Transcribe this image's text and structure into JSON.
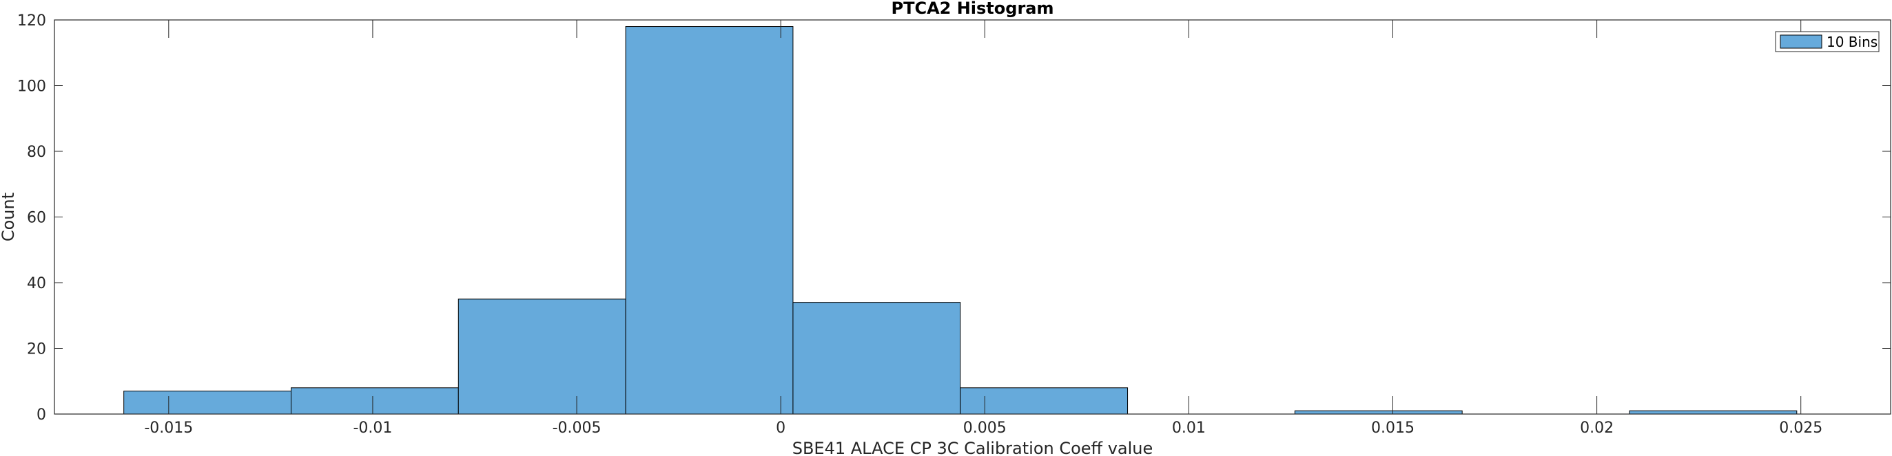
{
  "chart_data": {
    "type": "bar",
    "title": "PTCA2 Histogram",
    "xlabel": "SBE41 ALACE CP 3C Calibration Coeff value",
    "ylabel": "Count",
    "xlim": [
      -0.0178,
      0.0272
    ],
    "ylim": [
      0,
      120
    ],
    "grid": false,
    "legend_position": "top-right",
    "bar_color": "#66AADB",
    "series": [
      {
        "name": "10 Bins",
        "bin_edges": [
          -0.0161,
          -0.012,
          -0.0079,
          -0.0038,
          0.0003,
          0.0044,
          0.0085,
          0.0126,
          0.0167,
          0.0208,
          0.0249
        ],
        "values": [
          7,
          8,
          35,
          118,
          34,
          8,
          0,
          1,
          0,
          1
        ]
      }
    ],
    "x_ticks": [
      -0.015,
      -0.01,
      -0.005,
      0,
      0.005,
      0.01,
      0.015,
      0.02,
      0.025
    ],
    "x_tick_labels": [
      "-0.015",
      "-0.01",
      "-0.005",
      "0",
      "0.005",
      "0.01",
      "0.015",
      "0.02",
      "0.025"
    ],
    "y_ticks": [
      0,
      20,
      40,
      60,
      80,
      100,
      120
    ],
    "y_tick_labels": [
      "0",
      "20",
      "40",
      "60",
      "80",
      "100",
      "120"
    ]
  }
}
